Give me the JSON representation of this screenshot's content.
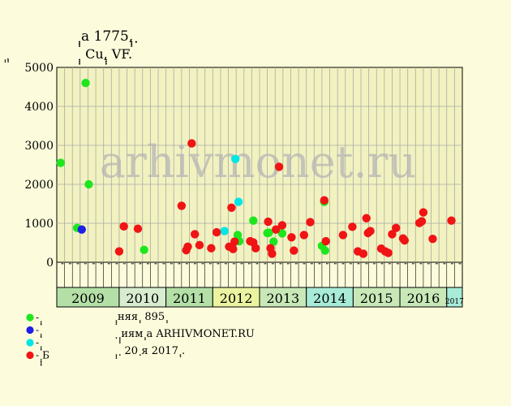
{
  "chart_data": {
    "type": "scatter",
    "title": "ฺฺฺa 1775,ฺฺฺ ฺ",
    "subtitle": "ฺฺฺ Cu,ฺฺฺ VF.",
    "ylabel": "ฺฺ,ฺฺ",
    "ylim": [
      0,
      5000
    ],
    "yticks": [
      0,
      1000,
      2000,
      3000,
      4000,
      5000
    ],
    "grid": true,
    "watermark": "arhivmonet.ru",
    "years": [
      {
        "label": "2009",
        "color": "#b4e0a8",
        "months": 8
      },
      {
        "label": "2010",
        "color": "#d8ecd0",
        "months": 6
      },
      {
        "label": "2011",
        "color": "#b4e0a8",
        "months": 6
      },
      {
        "label": "2012",
        "color": "#eaf4a0",
        "months": 6
      },
      {
        "label": "2013",
        "color": "#c8e8b8",
        "months": 6
      },
      {
        "label": "2014",
        "color": "#a8ecd8",
        "months": 6
      },
      {
        "label": "2015",
        "color": "#c8e8b8",
        "months": 6
      },
      {
        "label": "2016",
        "color": "#c8e8b8",
        "months": 6
      },
      {
        "label": "2017",
        "color": "#a8ecd8",
        "months": 2,
        "small": true
      }
    ],
    "month_labels": [
      "ฺฺ",
      "ฺฺ",
      "ฺฺ",
      "ฺฺ",
      "ฺฺ",
      "ฺฺ",
      "ฺฺ",
      "ฺฺ",
      "ฺฺ",
      "ฺฺ",
      "ฺฺ",
      "ฺฺ",
      "ฺฺ",
      "ฺฺ",
      "ฺฺ",
      "ฺฺ",
      "ฺฺ",
      "ฺฺ",
      "ฺฺ",
      "ฺฺ",
      "ฺฺ",
      "ฺฺ",
      "ฺฺ",
      "ฺฺ",
      "ฺฺ",
      "ฺฺ",
      "ฺฺ",
      "ฺฺ",
      "ฺฺ",
      "ฺฺ",
      "ฺฺ",
      "ฺฺ",
      "ฺฺ",
      "ฺฺ",
      "ฺฺ",
      "ฺฺ",
      "ฺฺ",
      "ฺฺ",
      "ฺฺ",
      "ฺฺ",
      "ฺฺ",
      "ฺฺ",
      "ฺฺ",
      "ฺฺ",
      "ฺฺ",
      "ฺฺ",
      "ฺฺ",
      "ฺฺ",
      "ฺฺ",
      "ฺฺ",
      "ฺฺ",
      "ฺฺ"
    ],
    "series": [
      {
        "name": "ฺฺฺ",
        "color": "#1ee61e",
        "points": [
          [
            0.0,
            2550
          ],
          [
            2.1,
            880
          ],
          [
            3.2,
            4600
          ],
          [
            3.6,
            2000
          ],
          [
            10.7,
            320
          ],
          [
            22.7,
            700
          ],
          [
            22.9,
            540
          ],
          [
            24.7,
            1070
          ],
          [
            26.5,
            750
          ],
          [
            26.7,
            760
          ],
          [
            27.3,
            530
          ],
          [
            28.4,
            740
          ],
          [
            33.5,
            420
          ],
          [
            33.8,
            1550
          ],
          [
            33.9,
            300
          ]
        ]
      },
      {
        "name": "ฺฺฺ",
        "color": "#1e1ee6",
        "points": [
          [
            2.7,
            840
          ]
        ]
      },
      {
        "name": "ฺฺฺ",
        "color": "#00e6e6",
        "points": [
          [
            21.0,
            800
          ],
          [
            22.4,
            2650
          ],
          [
            22.8,
            1550
          ]
        ]
      },
      {
        "name": "ฺฺฺฺฺБ",
        "color": "#f01414",
        "points": [
          [
            7.5,
            280
          ],
          [
            8.1,
            920
          ],
          [
            9.9,
            860
          ],
          [
            15.5,
            1450
          ],
          [
            16.1,
            310
          ],
          [
            16.3,
            400
          ],
          [
            16.8,
            3050
          ],
          [
            17.2,
            720
          ],
          [
            17.8,
            440
          ],
          [
            19.3,
            360
          ],
          [
            20.0,
            770
          ],
          [
            21.6,
            400
          ],
          [
            21.9,
            1400
          ],
          [
            22.1,
            340
          ],
          [
            22.3,
            530
          ],
          [
            24.3,
            540
          ],
          [
            24.7,
            510
          ],
          [
            25.0,
            360
          ],
          [
            26.6,
            1040
          ],
          [
            26.9,
            360
          ],
          [
            27.1,
            220
          ],
          [
            27.6,
            840
          ],
          [
            28.0,
            2450
          ],
          [
            28.4,
            950
          ],
          [
            29.6,
            640
          ],
          [
            29.9,
            300
          ],
          [
            31.2,
            700
          ],
          [
            32.0,
            1030
          ],
          [
            33.8,
            1590
          ],
          [
            34.0,
            540
          ],
          [
            36.2,
            700
          ],
          [
            37.4,
            910
          ],
          [
            38.1,
            280
          ],
          [
            38.8,
            220
          ],
          [
            39.2,
            1130
          ],
          [
            39.4,
            750
          ],
          [
            39.7,
            800
          ],
          [
            41.1,
            350
          ],
          [
            41.6,
            280
          ],
          [
            42.0,
            240
          ],
          [
            42.5,
            720
          ],
          [
            43.0,
            880
          ],
          [
            43.9,
            610
          ],
          [
            44.1,
            560
          ],
          [
            46.0,
            1010
          ],
          [
            46.3,
            1050
          ],
          [
            46.5,
            1280
          ],
          [
            47.7,
            600
          ],
          [
            50.1,
            1070
          ]
        ]
      }
    ]
  },
  "legend": [
    {
      "swatch": "#1ee61e",
      "label": "- ฺฺฺ"
    },
    {
      "swatch": "#1e1ee6",
      "label": "- ฺฺฺ"
    },
    {
      "swatch": "#00e6e6",
      "label": "- ฺฺฺ"
    },
    {
      "swatch": "#f01414",
      "label": "- ฺฺฺฺฺБ"
    }
  ],
  "notes": [
    "ฺฺฺняя ฺฺ 895 ฺฺ",
    "ฺ ฺฺฺฺиям ฺฺa ARHIVMONET.RU",
    "ฺฺฺ ฺ 20 ฺя 2017 ฺฺ."
  ]
}
